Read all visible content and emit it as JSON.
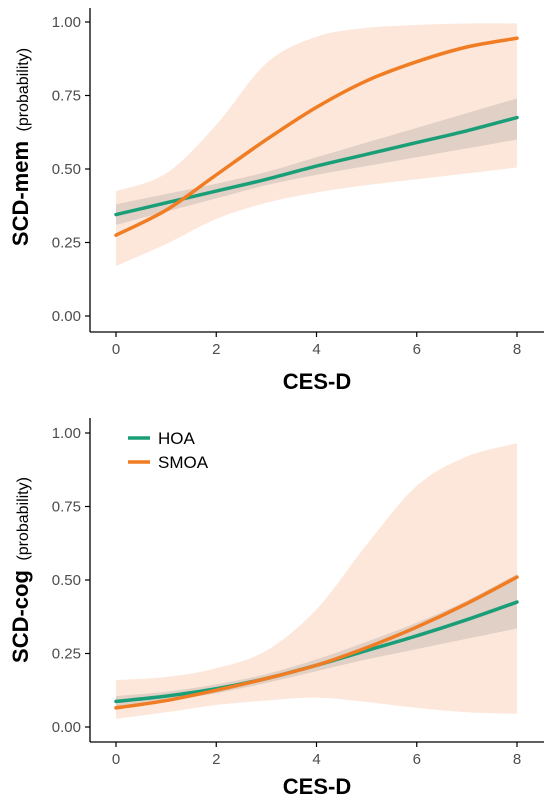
{
  "colors": {
    "hoa": "#1a9e77",
    "smoa": "#f07d24",
    "hoa_band": "#7f7f7f",
    "smoa_band": "#fde3d3",
    "axis": "#000000"
  },
  "legend": {
    "items": [
      {
        "label": "HOA",
        "color": "#1a9e77"
      },
      {
        "label": "SMOA",
        "color": "#f07d24"
      }
    ]
  },
  "chart_data": [
    {
      "type": "line",
      "xlabel": "CES-D",
      "ylabel_main": "SCD-mem",
      "ylabel_sub": "(probability)",
      "xlim": [
        0,
        8
      ],
      "ylim": [
        0,
        1
      ],
      "x_ticks": [
        0,
        2,
        4,
        6,
        8
      ],
      "x_tick_labels": [
        "0",
        "2",
        "4",
        "6",
        "8"
      ],
      "y_ticks": [
        0,
        0.25,
        0.5,
        0.75,
        1
      ],
      "y_tick_labels": [
        "0.00",
        "0.25",
        "0.50",
        "0.75",
        "1.00"
      ],
      "grid": false,
      "series": [
        {
          "name": "HOA",
          "x": [
            0,
            1,
            2,
            3,
            4,
            5,
            6,
            7,
            8
          ],
          "values": [
            0.345,
            0.385,
            0.425,
            0.465,
            0.51,
            0.55,
            0.59,
            0.63,
            0.675
          ],
          "lower": [
            0.31,
            0.355,
            0.4,
            0.445,
            0.48,
            0.51,
            0.54,
            0.57,
            0.6
          ],
          "upper": [
            0.38,
            0.415,
            0.45,
            0.49,
            0.54,
            0.59,
            0.64,
            0.69,
            0.74
          ]
        },
        {
          "name": "SMOA",
          "x": [
            0,
            1,
            2,
            3,
            4,
            5,
            6,
            7,
            8
          ],
          "values": [
            0.275,
            0.36,
            0.48,
            0.6,
            0.71,
            0.8,
            0.865,
            0.915,
            0.945
          ],
          "lower": [
            0.17,
            0.245,
            0.33,
            0.385,
            0.42,
            0.445,
            0.465,
            0.485,
            0.505
          ],
          "upper": [
            0.425,
            0.485,
            0.65,
            0.86,
            0.95,
            0.98,
            0.99,
            0.995,
            0.995
          ]
        }
      ]
    },
    {
      "type": "line",
      "xlabel": "CES-D",
      "ylabel_main": "SCD-cog",
      "ylabel_sub": "(probability)",
      "xlim": [
        0,
        8
      ],
      "ylim": [
        0,
        1
      ],
      "x_ticks": [
        0,
        2,
        4,
        6,
        8
      ],
      "x_tick_labels": [
        "0",
        "2",
        "4",
        "6",
        "8"
      ],
      "y_ticks": [
        0,
        0.25,
        0.5,
        0.75,
        1
      ],
      "y_tick_labels": [
        "0.00",
        "0.25",
        "0.50",
        "0.75",
        "1.00"
      ],
      "grid": false,
      "legend_position": "top-left",
      "series": [
        {
          "name": "HOA",
          "x": [
            0,
            1,
            2,
            3,
            4,
            5,
            6,
            7,
            8
          ],
          "values": [
            0.087,
            0.105,
            0.13,
            0.165,
            0.21,
            0.26,
            0.31,
            0.365,
            0.425
          ],
          "lower": [
            0.07,
            0.09,
            0.115,
            0.15,
            0.19,
            0.23,
            0.265,
            0.3,
            0.335
          ],
          "upper": [
            0.105,
            0.12,
            0.145,
            0.18,
            0.23,
            0.29,
            0.355,
            0.43,
            0.52
          ]
        },
        {
          "name": "SMOA",
          "x": [
            0,
            1,
            2,
            3,
            4,
            5,
            6,
            7,
            8
          ],
          "values": [
            0.065,
            0.09,
            0.125,
            0.165,
            0.21,
            0.27,
            0.34,
            0.42,
            0.51
          ],
          "lower": [
            0.028,
            0.05,
            0.075,
            0.09,
            0.1,
            0.085,
            0.065,
            0.05,
            0.045
          ],
          "upper": [
            0.16,
            0.17,
            0.2,
            0.26,
            0.4,
            0.62,
            0.82,
            0.92,
            0.965
          ]
        }
      ]
    }
  ]
}
